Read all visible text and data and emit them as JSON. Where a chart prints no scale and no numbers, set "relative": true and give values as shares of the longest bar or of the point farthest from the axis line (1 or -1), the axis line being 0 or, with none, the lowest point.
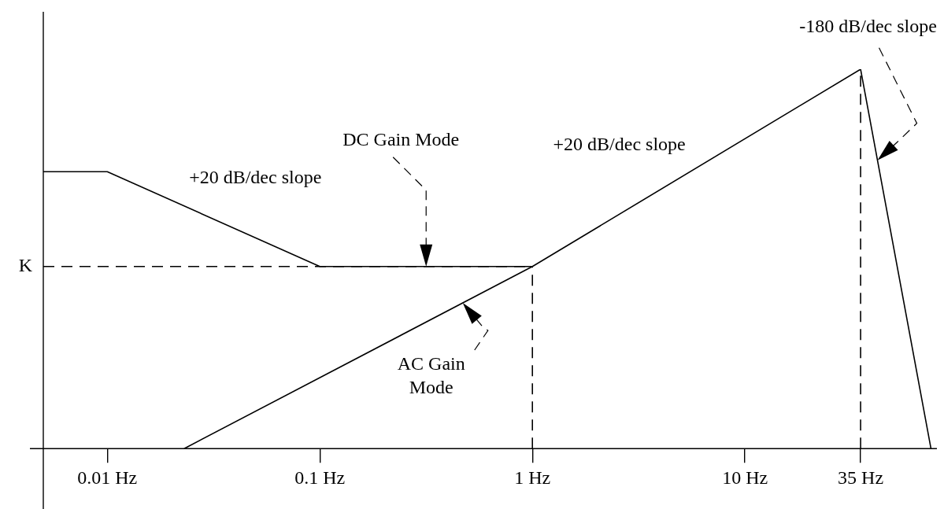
{
  "chart_data": {
    "type": "line",
    "relative": true,
    "marker": "none",
    "legend": false,
    "grid": false,
    "log": "x",
    "xlim": [
      0.005,
      80
    ],
    "xticks": [
      {
        "value": 0.01,
        "label": "0.01 Hz"
      },
      {
        "value": 0.1,
        "label": "0.1 Hz"
      },
      {
        "value": 1,
        "label": "1 Hz"
      },
      {
        "value": 10,
        "label": "10 Hz"
      },
      {
        "value": 35,
        "label": "35 Hz"
      }
    ],
    "series": [
      {
        "color": "#000000",
        "line_style": "solid",
        "x": [
          0.005,
          0.01,
          0.1,
          1
        ],
        "values": [
          0.73,
          0.73,
          0.48,
          0.48
        ]
      },
      {
        "color": "#000000",
        "line_style": "solid",
        "x": [
          0.023,
          1,
          35,
          75
        ],
        "values": [
          0,
          0.48,
          1,
          0
        ]
      },
      {
        "color": "#000000",
        "line_style": "dashed",
        "x": [
          0.005,
          1
        ],
        "values": [
          0.48,
          0.48
        ]
      },
      {
        "color": "#000000",
        "line_style": "dashed",
        "x": [
          1,
          1
        ],
        "values": [
          0,
          0.48
        ]
      },
      {
        "color": "#000000",
        "line_style": "dashed",
        "x": [
          35,
          35
        ],
        "values": [
          0,
          1
        ]
      }
    ],
    "annotations": [
      "+20 dB/dec slope",
      "DC Gain Mode",
      "AC Gain Mode",
      "+20 dB/dec slope",
      "-180 dB/dec slope",
      "K"
    ]
  }
}
